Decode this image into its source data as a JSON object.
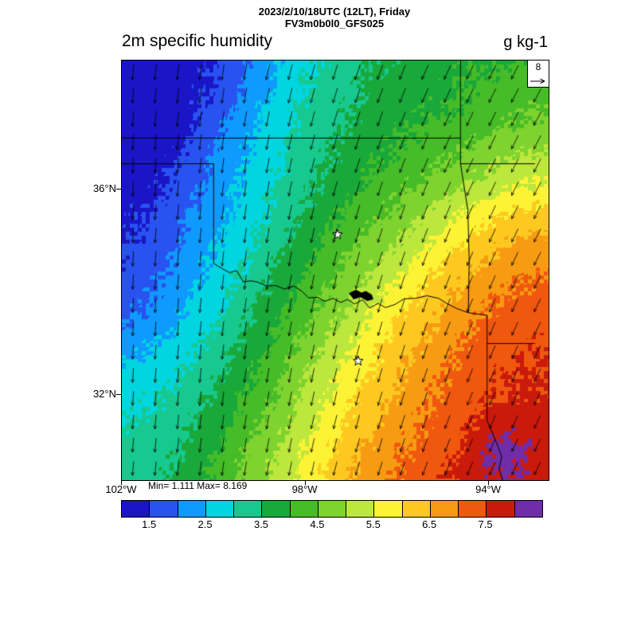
{
  "header": {
    "title_line1": "2023/2/10/18UTC (12LT), Friday",
    "title_line2": "FV3m0b0l0_GFS025",
    "left_title": "2m specific humidity",
    "units": "g kg-1"
  },
  "stats": {
    "text": "Min= 1.111 Max= 8.169"
  },
  "reference_vector": {
    "label": "8"
  },
  "axes": {
    "lat_ticks": [
      {
        "label": "36°N",
        "lat": 36
      },
      {
        "label": "32°N",
        "lat": 32
      }
    ],
    "lon_ticks": [
      {
        "label": "102°W",
        "lon": -102
      },
      {
        "label": "98°W",
        "lon": -98
      },
      {
        "label": "94°W",
        "lon": -94
      }
    ]
  },
  "colorbar": {
    "levels": [
      1.0,
      1.5,
      2.0,
      2.5,
      3.0,
      3.5,
      4.0,
      4.5,
      5.0,
      5.5,
      6.0,
      6.5,
      7.0,
      7.5,
      8.0,
      8.5
    ],
    "colors": [
      "#1a16c8",
      "#2853f0",
      "#0f9aff",
      "#00d5e0",
      "#17c98e",
      "#19a83a",
      "#45bc28",
      "#7ed32f",
      "#bce73c",
      "#fdf335",
      "#fdc920",
      "#f79b13",
      "#f0570f",
      "#ca1a0c",
      "#6f2da8"
    ],
    "tick_values": [
      1.5,
      2.5,
      3.5,
      4.5,
      5.5,
      6.5,
      7.5
    ],
    "tick_labels": [
      "1.5",
      "2.5",
      "3.5",
      "4.5",
      "5.5",
      "6.5",
      "7.5"
    ]
  },
  "chart_data": {
    "type": "heatmap",
    "title": "2m specific humidity",
    "units": "g kg-1",
    "min": 1.111,
    "max": 8.169,
    "extent": {
      "lon_min": -102.0,
      "lon_max": -92.7,
      "lat_min": 30.34,
      "lat_max": 38.51
    },
    "grid": {
      "lons": [
        -102,
        -101.5,
        -101,
        -100.5,
        -100,
        -99.5,
        -99,
        -98.5,
        -98,
        -97.5,
        -97,
        -96.5,
        -96,
        -95.5,
        -95,
        -94.5,
        -94,
        -93.5,
        -93
      ],
      "lats": [
        38.5,
        38.0,
        37.5,
        37.0,
        36.5,
        36.0,
        35.5,
        35.0,
        34.5,
        34.0,
        33.5,
        33.0,
        32.5,
        32.0,
        31.5,
        31.0,
        30.5
      ],
      "values": [
        [
          1.2,
          1.2,
          1.25,
          1.3,
          1.5,
          1.8,
          2.2,
          2.6,
          2.9,
          3.1,
          3.3,
          3.5,
          3.6,
          3.7,
          3.8,
          3.9,
          4.0,
          4.05,
          4.1
        ],
        [
          1.2,
          1.15,
          1.2,
          1.35,
          1.55,
          1.9,
          2.3,
          2.7,
          3.0,
          3.2,
          3.4,
          3.6,
          3.7,
          3.8,
          3.9,
          4.0,
          4.1,
          4.2,
          4.3
        ],
        [
          1.15,
          1.2,
          1.25,
          1.4,
          1.7,
          2.1,
          2.5,
          2.8,
          3.1,
          3.3,
          3.5,
          3.7,
          3.8,
          3.9,
          4.0,
          4.1,
          4.25,
          4.4,
          4.5
        ],
        [
          1.2,
          1.25,
          1.3,
          1.5,
          1.9,
          2.3,
          2.6,
          2.9,
          3.2,
          3.4,
          3.6,
          3.8,
          3.95,
          4.1,
          4.25,
          4.4,
          4.55,
          4.7,
          4.8
        ],
        [
          1.25,
          1.3,
          1.4,
          1.7,
          2.1,
          2.4,
          2.7,
          3.0,
          3.3,
          3.5,
          3.75,
          3.95,
          4.15,
          4.3,
          4.5,
          4.7,
          4.9,
          5.1,
          5.2
        ],
        [
          1.3,
          1.4,
          1.55,
          1.9,
          2.2,
          2.5,
          2.8,
          3.1,
          3.4,
          3.65,
          3.9,
          4.15,
          4.4,
          4.6,
          4.8,
          5.1,
          5.3,
          5.5,
          5.6
        ],
        [
          1.35,
          1.5,
          1.7,
          2.0,
          2.35,
          2.6,
          2.9,
          3.25,
          3.55,
          3.85,
          4.15,
          4.4,
          4.65,
          4.95,
          5.3,
          5.6,
          5.9,
          6.1,
          6.2
        ],
        [
          1.45,
          1.6,
          1.85,
          2.15,
          2.45,
          2.75,
          3.05,
          3.4,
          3.75,
          4.1,
          4.4,
          4.7,
          5.0,
          5.35,
          5.7,
          6.0,
          6.3,
          6.5,
          6.6
        ],
        [
          1.55,
          1.75,
          2.0,
          2.3,
          2.6,
          2.9,
          3.25,
          3.6,
          3.95,
          4.3,
          4.65,
          5.0,
          5.35,
          5.7,
          6.05,
          6.35,
          6.6,
          6.8,
          6.9
        ],
        [
          1.7,
          1.9,
          2.15,
          2.45,
          2.75,
          3.1,
          3.45,
          3.8,
          4.15,
          4.55,
          4.9,
          5.3,
          5.65,
          6.0,
          6.35,
          6.6,
          6.85,
          7.0,
          7.1
        ],
        [
          1.9,
          2.1,
          2.35,
          2.6,
          2.95,
          3.3,
          3.65,
          4.0,
          4.4,
          4.8,
          5.2,
          5.6,
          5.95,
          6.3,
          6.6,
          6.85,
          7.1,
          7.2,
          7.3
        ],
        [
          2.2,
          2.4,
          2.6,
          2.85,
          3.15,
          3.5,
          3.85,
          4.25,
          4.65,
          5.05,
          5.45,
          5.85,
          6.2,
          6.5,
          6.8,
          7.05,
          7.25,
          7.35,
          7.4
        ],
        [
          2.6,
          2.7,
          2.85,
          3.1,
          3.35,
          3.7,
          4.05,
          4.45,
          4.9,
          5.3,
          5.7,
          6.05,
          6.4,
          6.7,
          6.95,
          7.2,
          7.35,
          7.45,
          7.5
        ],
        [
          2.8,
          2.9,
          3.05,
          3.3,
          3.55,
          3.9,
          4.25,
          4.65,
          5.1,
          5.5,
          5.9,
          6.25,
          6.55,
          6.85,
          7.1,
          7.3,
          7.45,
          7.55,
          7.6
        ],
        [
          3.0,
          3.1,
          3.2,
          3.45,
          3.75,
          4.1,
          4.45,
          4.85,
          5.3,
          5.7,
          6.1,
          6.45,
          6.75,
          7.0,
          7.2,
          7.4,
          7.6,
          7.75,
          7.7
        ],
        [
          3.1,
          3.2,
          3.35,
          3.6,
          3.9,
          4.3,
          4.65,
          5.05,
          5.5,
          5.9,
          6.3,
          6.6,
          6.9,
          7.1,
          7.3,
          7.55,
          8.1,
          8.2,
          7.9
        ],
        [
          3.2,
          3.3,
          3.45,
          3.75,
          4.1,
          4.5,
          4.85,
          5.25,
          5.7,
          6.1,
          6.5,
          6.8,
          7.05,
          7.25,
          7.45,
          7.7,
          8.0,
          8.1,
          7.8
        ]
      ]
    },
    "wind": {
      "reference": 8,
      "lons": [
        -102,
        -99.675,
        -97.35,
        -95.025,
        -92.7
      ],
      "lats": [
        38.51,
        36.4675,
        34.425,
        32.3825,
        30.34
      ],
      "u": [
        [
          -0.5,
          -1.2,
          -2.2,
          -3.2,
          -3.6
        ],
        [
          -0.4,
          -1.0,
          -2.0,
          -3.0,
          -3.4
        ],
        [
          -0.3,
          -0.8,
          -1.6,
          -2.6,
          -3.2
        ],
        [
          -0.4,
          -0.9,
          -1.6,
          -2.4,
          -3.0
        ],
        [
          -0.6,
          -1.0,
          -1.7,
          -2.5,
          -3.0
        ]
      ],
      "v": [
        [
          -7.5,
          -7.5,
          -7.2,
          -6.8,
          -6.5
        ],
        [
          -7.5,
          -7.3,
          -7.0,
          -6.8,
          -6.5
        ],
        [
          -7.2,
          -7.2,
          -7.0,
          -6.6,
          -6.3
        ],
        [
          -7.0,
          -7.0,
          -6.8,
          -6.5,
          -6.2
        ],
        [
          -6.8,
          -6.8,
          -6.6,
          -6.4,
          -6.0
        ]
      ]
    },
    "overlays": {
      "borders": [
        [
          [
            -102,
            37
          ],
          [
            -94.62,
            37
          ]
        ],
        [
          [
            -94.62,
            38.51
          ],
          [
            -94.62,
            36.5
          ]
        ],
        [
          [
            -94.62,
            36.5
          ],
          [
            -93.0,
            36.5
          ]
        ],
        [
          [
            -94.62,
            36.5
          ],
          [
            -94.46,
            35.6
          ],
          [
            -94.43,
            34.6
          ],
          [
            -94.45,
            33.6
          ]
        ],
        [
          [
            -102,
            36.5
          ],
          [
            -100,
            36.5
          ]
        ],
        [
          [
            -100,
            36.5
          ],
          [
            -100,
            34.56
          ]
        ],
        [
          [
            -100,
            34.56
          ],
          [
            -99.8,
            34.45
          ],
          [
            -99.65,
            34.38
          ],
          [
            -99.5,
            34.42
          ],
          [
            -99.35,
            34.2
          ],
          [
            -99.2,
            34.22
          ],
          [
            -99.05,
            34.2
          ],
          [
            -98.85,
            34.12
          ],
          [
            -98.65,
            34.13
          ],
          [
            -98.45,
            34.06
          ],
          [
            -98.25,
            34.12
          ],
          [
            -98.08,
            34.02
          ],
          [
            -97.93,
            33.89
          ],
          [
            -97.73,
            33.9
          ],
          [
            -97.58,
            33.82
          ],
          [
            -97.4,
            33.88
          ],
          [
            -97.23,
            33.8
          ],
          [
            -97.08,
            33.86
          ],
          [
            -96.93,
            33.77
          ],
          [
            -96.75,
            33.85
          ],
          [
            -96.6,
            33.69
          ],
          [
            -96.42,
            33.78
          ],
          [
            -96.25,
            33.7
          ],
          [
            -96.05,
            33.76
          ],
          [
            -95.85,
            33.87
          ],
          [
            -95.6,
            33.88
          ],
          [
            -95.35,
            33.93
          ],
          [
            -95.1,
            33.88
          ],
          [
            -94.9,
            33.77
          ],
          [
            -94.7,
            33.68
          ],
          [
            -94.45,
            33.6
          ],
          [
            -94.04,
            33.55
          ]
        ],
        [
          [
            -94.04,
            33.55
          ],
          [
            -94.04,
            31.5
          ],
          [
            -93.85,
            31.1
          ],
          [
            -93.72,
            30.8
          ],
          [
            -93.78,
            30.55
          ],
          [
            -93.7,
            30.34
          ]
        ],
        [
          [
            -94.04,
            33.0
          ],
          [
            -93.0,
            33.0
          ]
        ]
      ],
      "markers": [
        {
          "shape": "star",
          "lon": -97.3,
          "lat": 35.12
        },
        {
          "shape": "star",
          "lon": -96.85,
          "lat": 32.66
        }
      ],
      "water": [
        [
          [
            -97.05,
            33.98
          ],
          [
            -96.9,
            34.05
          ],
          [
            -96.78,
            33.99
          ],
          [
            -96.68,
            34.02
          ],
          [
            -96.55,
            33.95
          ],
          [
            -96.52,
            33.86
          ],
          [
            -96.65,
            33.83
          ],
          [
            -96.8,
            33.9
          ],
          [
            -96.95,
            33.86
          ]
        ]
      ]
    }
  }
}
